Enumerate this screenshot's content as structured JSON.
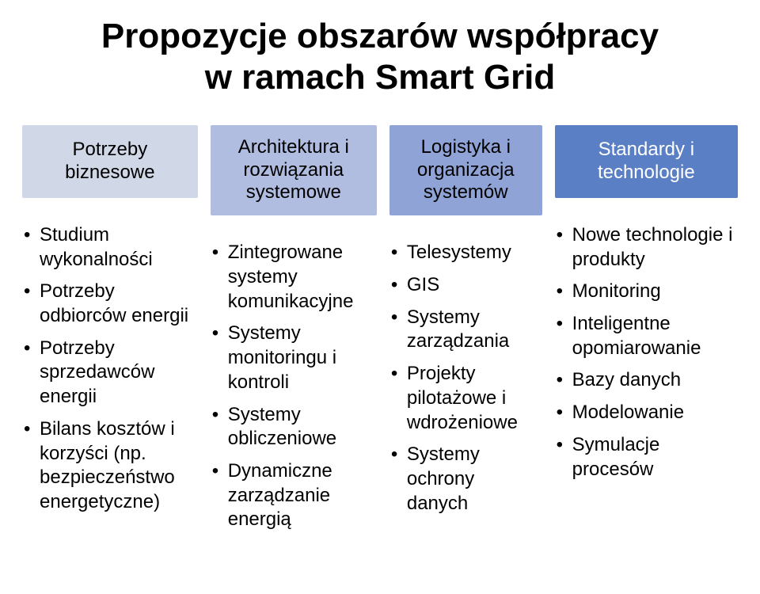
{
  "title_line1": "Propozycje obszarów współpracy",
  "title_line2": "w ramach Smart Grid",
  "columns": [
    {
      "header": "Potrzeby biznesowe",
      "header_bg": "#d0d8e8",
      "header_text": "#000000",
      "items": [
        "Studium wykonalności",
        "Potrzeby odbiorców energii",
        "Potrzeby sprzedawców energii",
        "Bilans kosztów i korzyści (np. bezpieczeństwo energetyczne)"
      ]
    },
    {
      "header": "Architektura i rozwiązania systemowe",
      "header_bg": "#b0bde0",
      "header_text": "#000000",
      "items": [
        "Zintegrowane systemy komunikacyjne",
        "Systemy monitoringu i kontroli",
        "Systemy obliczeniowe",
        "Dynamiczne zarządzanie energią"
      ]
    },
    {
      "header": "Logistyka i organizacja systemów",
      "header_bg": "#8fa3d6",
      "header_text": "#000000",
      "items": [
        "Telesystemy",
        "GIS",
        "Systemy zarządzania",
        "Projekty pilotażowe i wdrożeniowe",
        "Systemy ochrony danych"
      ]
    },
    {
      "header": "Standardy i technologie",
      "header_bg": "#5a7fc4",
      "header_text": "#ffffff",
      "items": [
        "Nowe technologie i produkty",
        "Monitoring",
        "Inteligentne opomiarowanie",
        "Bazy danych",
        "Modelowanie",
        "Symulacje procesów"
      ]
    }
  ]
}
